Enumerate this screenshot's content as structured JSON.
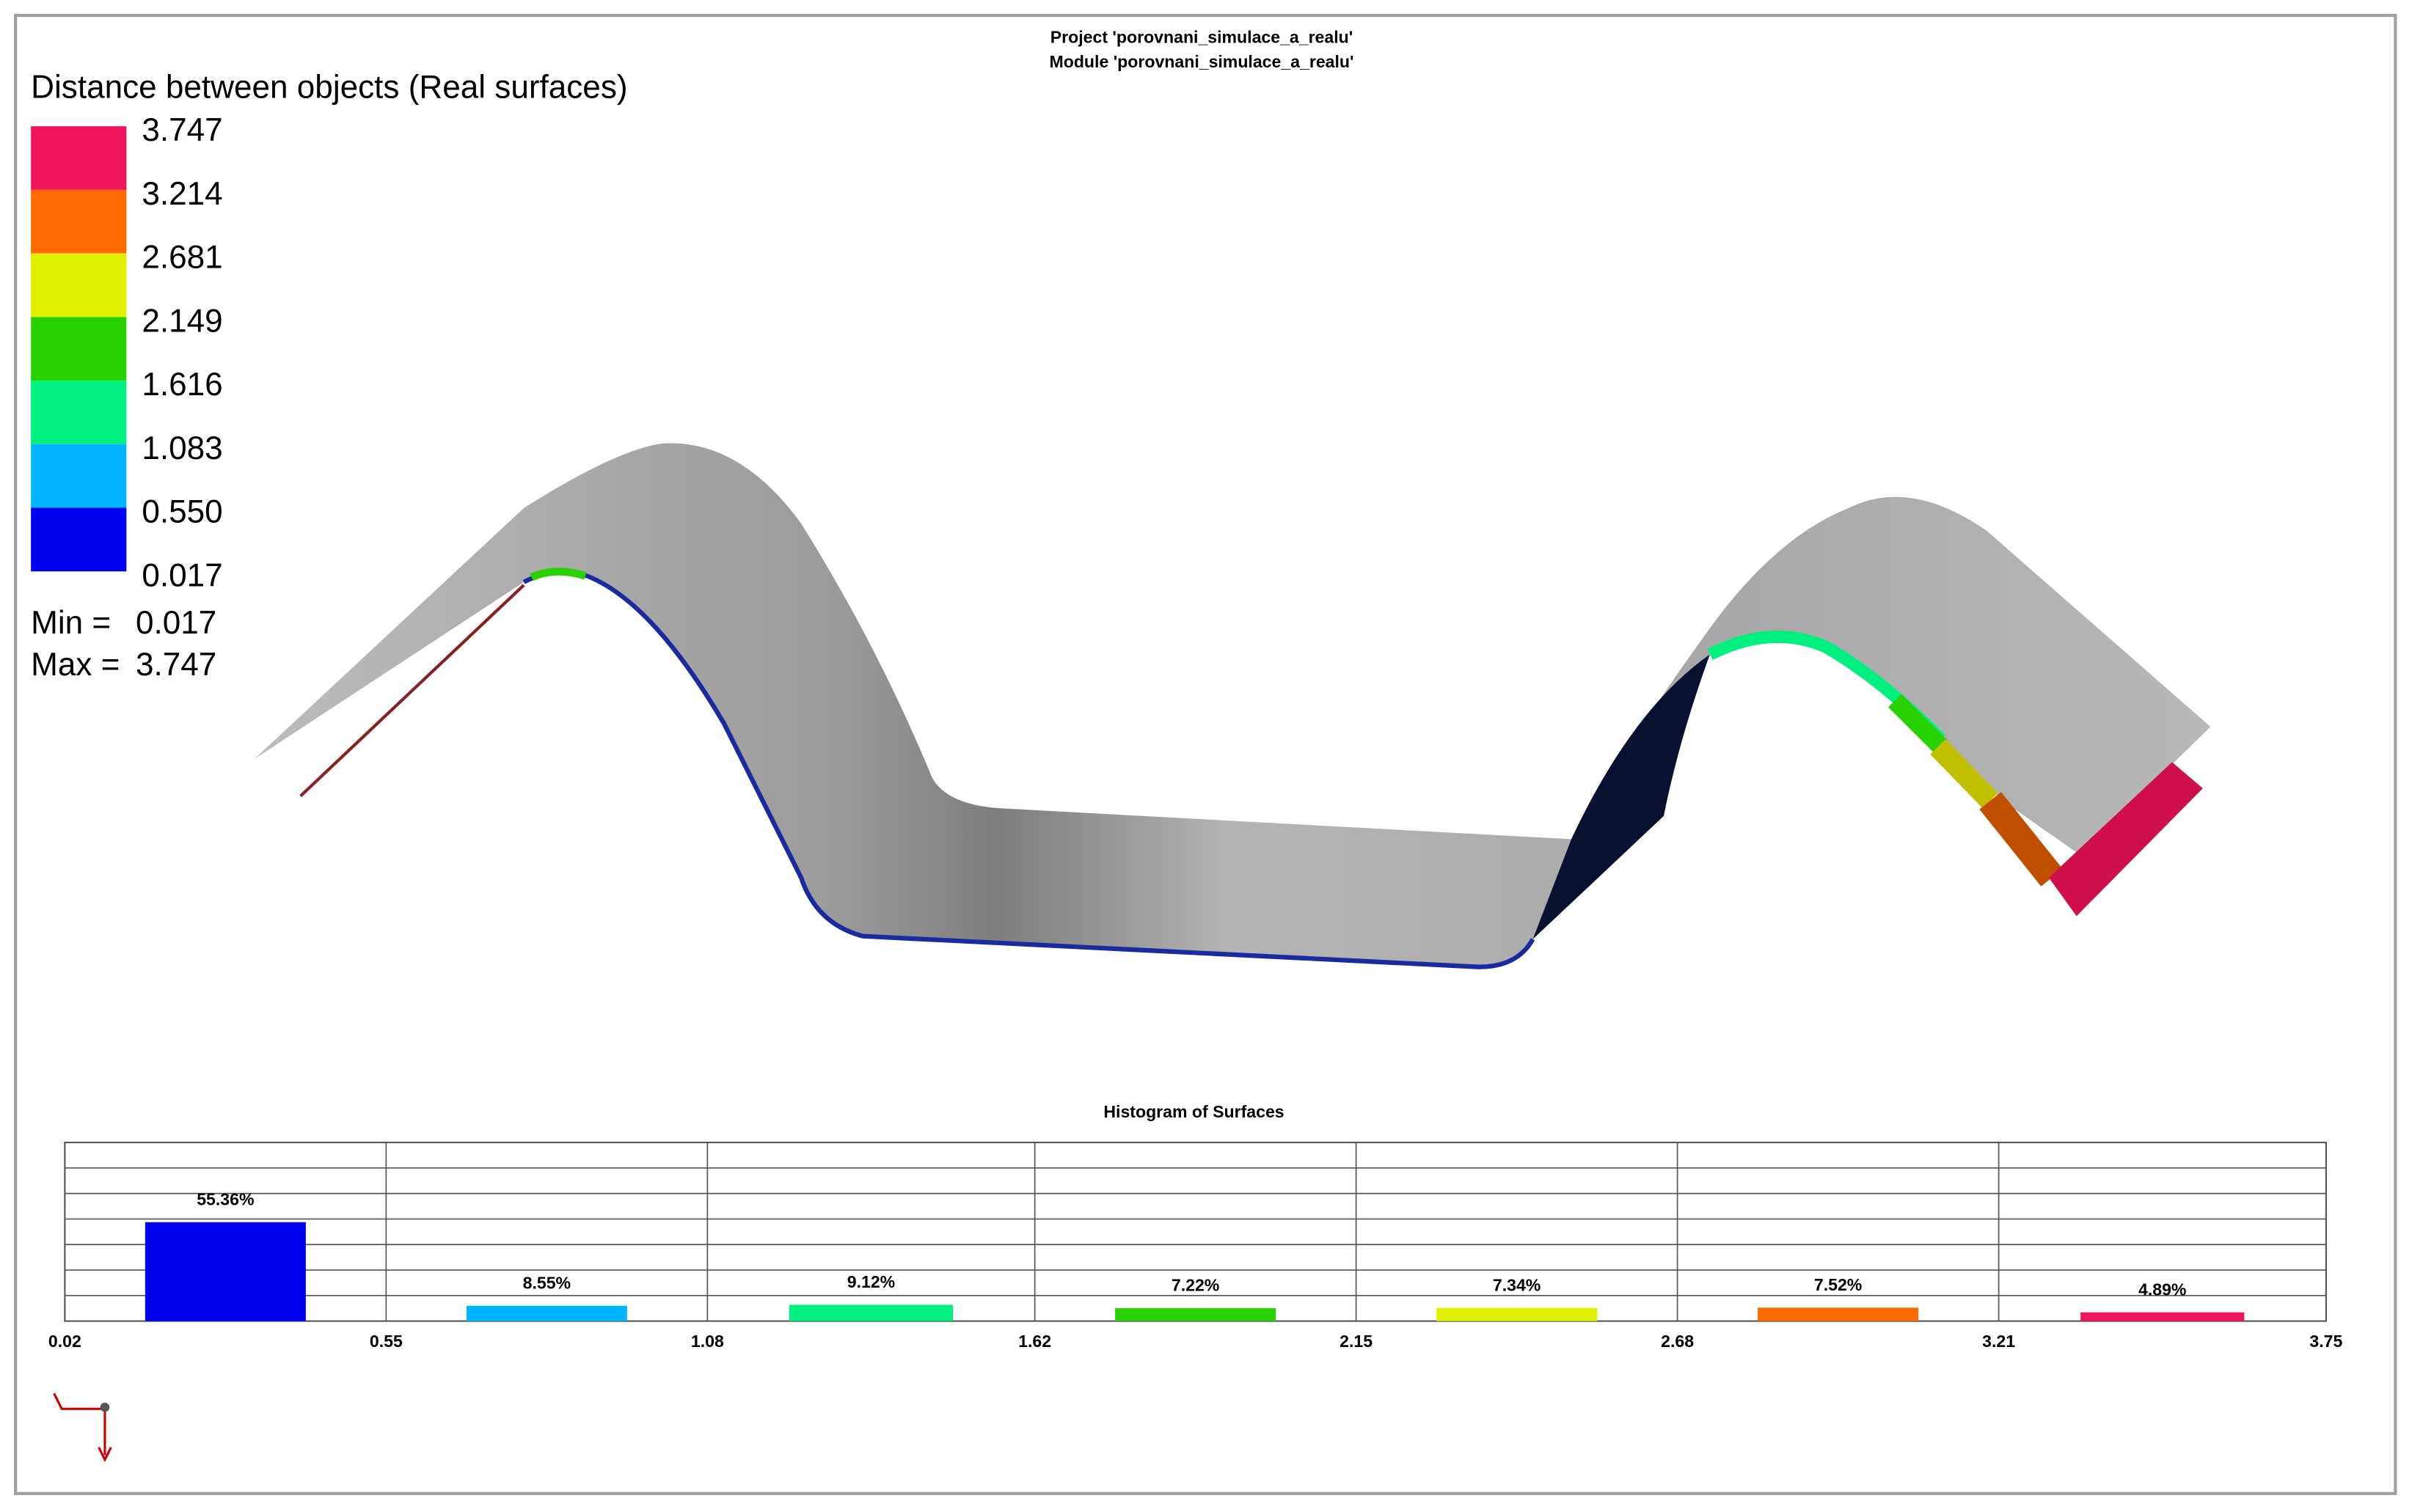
{
  "header": {
    "project": "Project 'porovnani_simulace_a_realu'",
    "module": "Module 'porovnani_simulace_a_realu'"
  },
  "legend": {
    "title": "Distance between objects (Real surfaces)",
    "labels": [
      "3.747",
      "3.214",
      "2.681",
      "2.149",
      "1.616",
      "1.083",
      "0.550",
      "0.017"
    ],
    "colors": [
      "#f0145a",
      "#ff6a00",
      "#e0f000",
      "#28d200",
      "#00f080",
      "#00b4ff",
      "#0000f0"
    ],
    "stats": [
      {
        "label": "Min =",
        "value": "0.017"
      },
      {
        "label": "Max =",
        "value": "3.747"
      }
    ]
  },
  "chart_data": {
    "type": "histogram",
    "title": "Histogram of Surfaces",
    "bins": [
      0.02,
      0.55,
      1.08,
      1.62,
      2.15,
      2.68,
      3.21,
      3.75
    ],
    "values": [
      55.36,
      8.55,
      9.12,
      7.22,
      7.34,
      7.52,
      4.89
    ],
    "value_labels": [
      "55.36%",
      "8.55%",
      "9.12%",
      "7.22%",
      "7.34%",
      "7.52%",
      "4.89%"
    ],
    "colors": [
      "#0000f0",
      "#00b4ff",
      "#00f080",
      "#28d200",
      "#e0f000",
      "#ff6a00",
      "#f0145a"
    ],
    "xlim": [
      0.02,
      3.75
    ],
    "xticks": [
      0.02,
      0.55,
      1.08,
      1.62,
      2.15,
      2.68,
      3.21,
      3.75
    ],
    "ylim": [
      0,
      100
    ],
    "grid": true
  }
}
